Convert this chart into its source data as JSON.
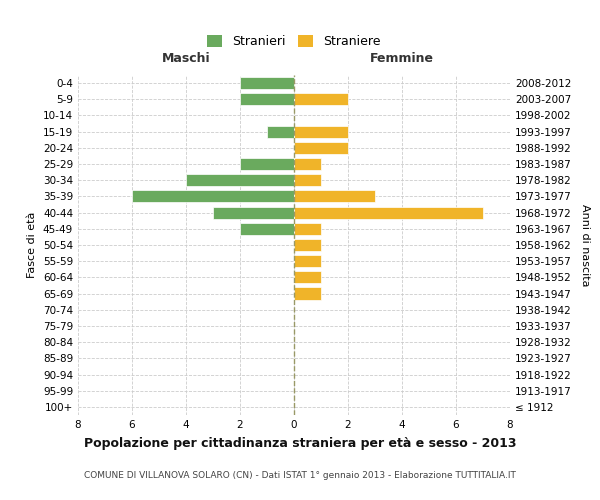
{
  "age_groups": [
    "100+",
    "95-99",
    "90-94",
    "85-89",
    "80-84",
    "75-79",
    "70-74",
    "65-69",
    "60-64",
    "55-59",
    "50-54",
    "45-49",
    "40-44",
    "35-39",
    "30-34",
    "25-29",
    "20-24",
    "15-19",
    "10-14",
    "5-9",
    "0-4"
  ],
  "birth_years": [
    "≤ 1912",
    "1913-1917",
    "1918-1922",
    "1923-1927",
    "1928-1932",
    "1933-1937",
    "1938-1942",
    "1943-1947",
    "1948-1952",
    "1953-1957",
    "1958-1962",
    "1963-1967",
    "1968-1972",
    "1973-1977",
    "1978-1982",
    "1983-1987",
    "1988-1992",
    "1993-1997",
    "1998-2002",
    "2003-2007",
    "2008-2012"
  ],
  "maschi": [
    0,
    0,
    0,
    0,
    0,
    0,
    0,
    0,
    0,
    0,
    0,
    2,
    3,
    6,
    4,
    2,
    0,
    1,
    0,
    2,
    2
  ],
  "femmine": [
    0,
    0,
    0,
    0,
    0,
    0,
    0,
    1,
    1,
    1,
    1,
    1,
    7,
    3,
    1,
    1,
    2,
    2,
    0,
    2,
    0
  ],
  "color_maschi": "#6aaa5e",
  "color_femmine": "#f0b429",
  "background_color": "#ffffff",
  "grid_color": "#cccccc",
  "title": "Popolazione per cittadinanza straniera per età e sesso - 2013",
  "subtitle": "COMUNE DI VILLANOVA SOLARO (CN) - Dati ISTAT 1° gennaio 2013 - Elaborazione TUTTITALIA.IT",
  "xlabel_left": "Maschi",
  "xlabel_right": "Femmine",
  "ylabel_left": "Fasce di età",
  "ylabel_right": "Anni di nascita",
  "legend_stranieri": "Stranieri",
  "legend_straniere": "Straniere",
  "xlim": 8,
  "title_fontsize": 9,
  "subtitle_fontsize": 6.5,
  "tick_fontsize": 7.5,
  "label_fontsize": 8,
  "header_fontsize": 9
}
